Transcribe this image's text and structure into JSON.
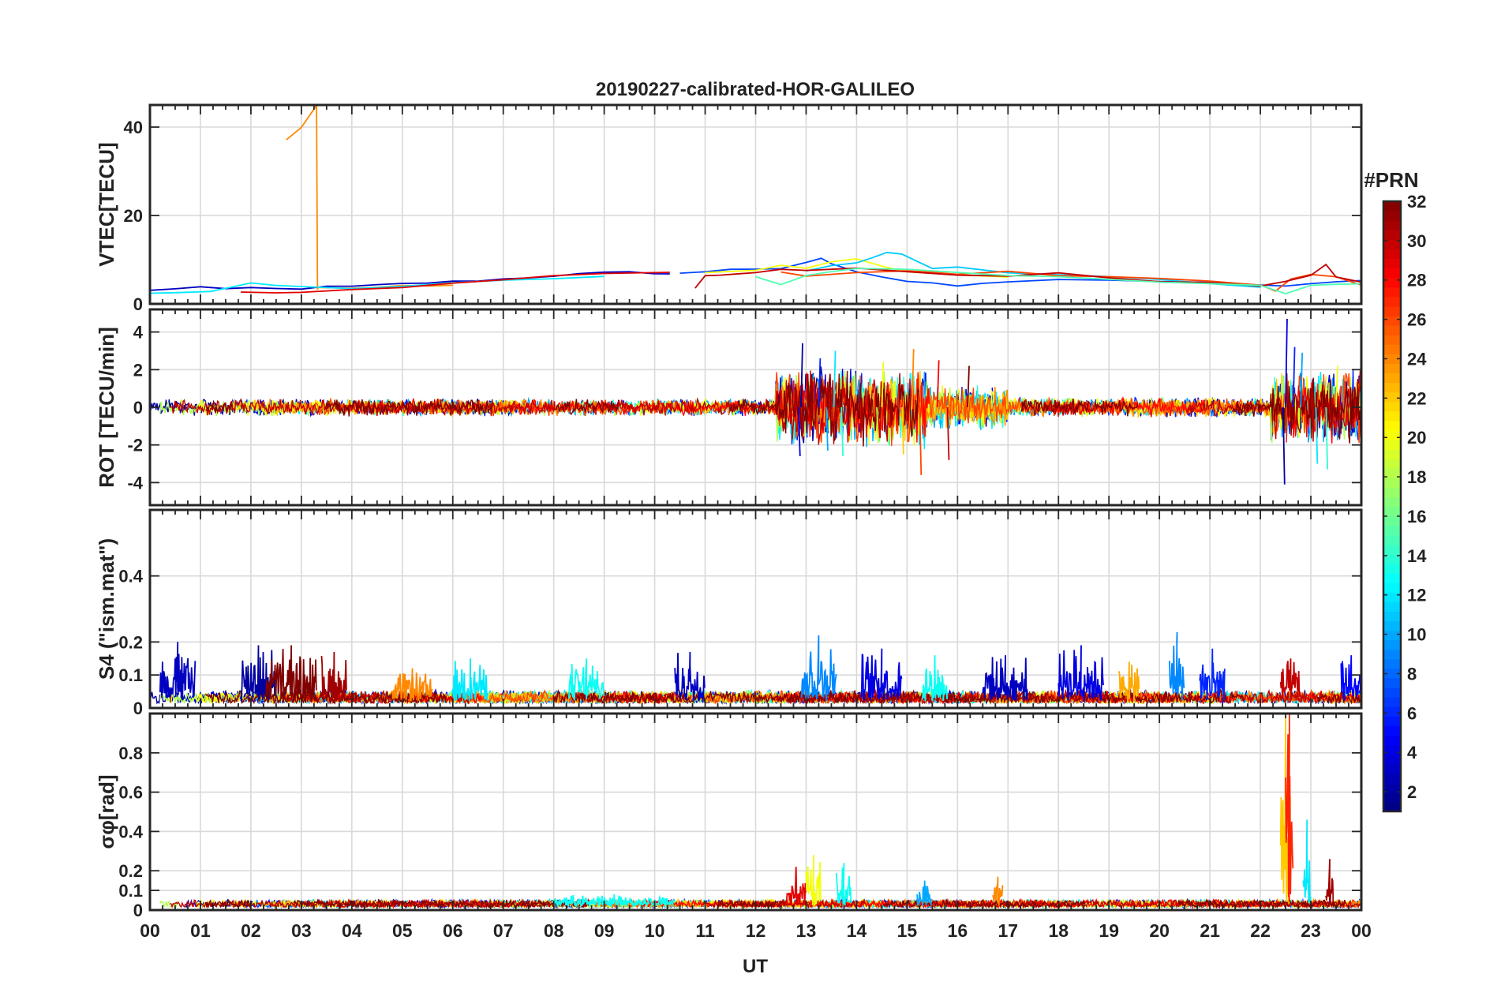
{
  "chart_data": {
    "type": "line",
    "title": "20190227-calibrated-HOR-GALILEO",
    "xlabel": "UT",
    "xlim": [
      0,
      24
    ],
    "x_tick_labels": [
      "00",
      "01",
      "02",
      "03",
      "04",
      "05",
      "06",
      "07",
      "08",
      "09",
      "10",
      "11",
      "12",
      "13",
      "14",
      "15",
      "16",
      "17",
      "18",
      "19",
      "20",
      "21",
      "22",
      "23",
      "00"
    ],
    "grid": true,
    "colorbar": {
      "label": "#PRN",
      "colormap": "jet",
      "range": [
        1,
        32
      ],
      "ticks": [
        "2",
        "4",
        "6",
        "8",
        "10",
        "12",
        "14",
        "16",
        "18",
        "20",
        "22",
        "24",
        "26",
        "28",
        "30",
        "32"
      ]
    },
    "panels": [
      {
        "ylabel": "VTEC[TECU]",
        "ylim": [
          0,
          45
        ],
        "yticks": [
          0,
          20,
          40
        ],
        "series": [
          {
            "prn": 3,
            "x": [
              0,
              0.5,
              1,
              1.5,
              2,
              2.5,
              3,
              3.5,
              4,
              4.5,
              5,
              5.5,
              6,
              6.5,
              7,
              7.5,
              8,
              8.5,
              9,
              9.5,
              10,
              10.3
            ],
            "y": [
              3,
              3.5,
              3.8,
              3.2,
              3.6,
              3.4,
              3.5,
              3.8,
              3.9,
              4.2,
              4.5,
              4.8,
              5,
              5.3,
              5.6,
              6,
              6.4,
              6.7,
              7,
              7.1,
              7,
              6.8
            ]
          },
          {
            "prn": 24,
            "x": [
              2.7,
              3.0,
              3.3,
              3.32,
              3.35,
              3.4,
              4,
              4.5,
              5,
              5.5,
              6
            ],
            "y": [
              37,
              40,
              45,
              3.5,
              3.6,
              3.5,
              3.6,
              3.8,
              4,
              4.2,
              4.4
            ]
          },
          {
            "prn": 12,
            "x": [
              0,
              0.5,
              1.2,
              2,
              2.5,
              3,
              4,
              5,
              6,
              7,
              8,
              9
            ],
            "y": [
              2.5,
              2.6,
              2.8,
              4.5,
              4.2,
              3.8,
              3.6,
              4,
              4.6,
              5.2,
              5.8,
              6.2
            ]
          },
          {
            "prn": 29,
            "x": [
              1.8,
              2.5,
              3,
              4,
              5,
              6,
              7,
              8,
              9,
              10.3
            ],
            "y": [
              2.5,
              2.4,
              2.8,
              3.2,
              3.9,
              4.6,
              5.5,
              6.3,
              7,
              7.2
            ]
          },
          {
            "prn": 7,
            "x": [
              10.5,
              11,
              11.5,
              12,
              12.5,
              13,
              13.3,
              13.5,
              14,
              14.5,
              15,
              15.5,
              16,
              16.5,
              17,
              18,
              19,
              20,
              21,
              22,
              22.5,
              23,
              23.5,
              24
            ],
            "y": [
              7,
              7.3,
              7.6,
              7.9,
              8.2,
              9.5,
              10.5,
              9,
              7.5,
              6.2,
              5.2,
              4.8,
              4.2,
              4.5,
              5,
              5.5,
              5.2,
              5,
              4.8,
              4.5,
              4,
              4.6,
              5,
              5.2
            ]
          },
          {
            "prn": 20,
            "x": [
              11,
              12,
              12.5,
              13,
              13.5,
              14,
              14.5,
              15,
              16,
              17
            ],
            "y": [
              7.2,
              7.6,
              8.5,
              8.2,
              9.5,
              10,
              8.5,
              7.5,
              6.5,
              6
            ]
          },
          {
            "prn": 11,
            "x": [
              13,
              13.5,
              14,
              14.3,
              14.6,
              14.9,
              15.5,
              16,
              17,
              18,
              19,
              20,
              21,
              22
            ],
            "y": [
              7.5,
              8.5,
              9.2,
              10.5,
              11.5,
              11,
              8,
              8.5,
              7,
              6.5,
              6,
              5.5,
              4.5,
              4
            ]
          },
          {
            "prn": 26,
            "x": [
              12.5,
              13,
              14,
              15,
              15.5,
              16,
              17,
              18,
              19,
              20,
              21,
              22,
              22.3,
              22.6,
              23,
              23.5,
              24
            ],
            "y": [
              7,
              6.5,
              7.2,
              7.5,
              7,
              6.8,
              7.2,
              6.5,
              6,
              5.8,
              5.2,
              4.5,
              3,
              5.5,
              6.5,
              6,
              4
            ]
          },
          {
            "prn": 30,
            "x": [
              10.8,
              11,
              11.3,
              11.6,
              12,
              12.5,
              13,
              14,
              15,
              16,
              17,
              18,
              19,
              20,
              21,
              22,
              22.5,
              23,
              23.3,
              23.5,
              24
            ],
            "y": [
              3.5,
              6.2,
              6.6,
              7,
              7.2,
              7.8,
              7.5,
              8,
              7.2,
              6.5,
              6.2,
              6.8,
              5.8,
              5.2,
              4.8,
              4.2,
              5,
              6.5,
              9,
              6,
              5
            ]
          },
          {
            "prn": 15,
            "x": [
              12,
              12.5,
              13,
              13.5,
              14,
              15,
              16,
              17,
              18,
              19,
              20,
              21,
              22,
              22.5,
              23,
              23.5,
              24
            ],
            "y": [
              6.2,
              4.5,
              6.5,
              7.5,
              8,
              7.6,
              7,
              6.4,
              6,
              5.4,
              5,
              4.6,
              4.2,
              2.5,
              4,
              4.5,
              4.8
            ]
          }
        ]
      },
      {
        "ylabel": "ROT [TECU/min]",
        "ylim": [
          -5.2,
          5.2
        ],
        "yticks": [
          -4,
          -2,
          0,
          2,
          4
        ],
        "activity": [
          {
            "x": [
              0,
              12.4
            ],
            "amp": 0.35
          },
          {
            "x": [
              12.4,
              15.4
            ],
            "amp": 1.6
          },
          {
            "x": [
              15.4,
              17
            ],
            "amp": 0.9
          },
          {
            "x": [
              17,
              22.2
            ],
            "amp": 0.4
          },
          {
            "x": [
              22.2,
              24
            ],
            "amp": 1.5
          }
        ],
        "spikes": [
          {
            "x": 12.9,
            "y": 3.4
          },
          {
            "x": 12.85,
            "y": -2.6
          },
          {
            "x": 13.25,
            "y": 2.6
          },
          {
            "x": 13.4,
            "y": -2.3
          },
          {
            "x": 13.55,
            "y": 3.0
          },
          {
            "x": 13.7,
            "y": -2.6
          },
          {
            "x": 14.4,
            "y": -1.9
          },
          {
            "x": 14.5,
            "y": 2.4
          },
          {
            "x": 14.9,
            "y": -2.5
          },
          {
            "x": 15.1,
            "y": 3.1
          },
          {
            "x": 15.25,
            "y": -3.6
          },
          {
            "x": 15.6,
            "y": 2.5
          },
          {
            "x": 15.8,
            "y": -2.8
          },
          {
            "x": 16.2,
            "y": 2.2
          },
          {
            "x": 22.45,
            "y": -4.1
          },
          {
            "x": 22.5,
            "y": 4.7
          },
          {
            "x": 22.65,
            "y": 3.2
          },
          {
            "x": 22.8,
            "y": 2.9
          },
          {
            "x": 23.1,
            "y": -3.0
          },
          {
            "x": 23.3,
            "y": -3.3
          },
          {
            "x": 22.2,
            "y": -1.9
          },
          {
            "x": 23.5,
            "y": 2.2
          }
        ]
      },
      {
        "ylabel": "S4 (\"ism.mat\")",
        "ylim": [
          0,
          0.6
        ],
        "yticks": [
          0,
          0.1,
          0.2,
          0.4
        ],
        "activity": [
          {
            "x": [
              0,
              24
            ],
            "amp": 0.04
          }
        ],
        "bursts": [
          {
            "x": [
              0.2,
              0.9
            ],
            "peak": 0.2,
            "prn": 3
          },
          {
            "x": [
              1.8,
              2.5
            ],
            "peak": 0.19,
            "prn": 2
          },
          {
            "x": [
              2.3,
              3.3
            ],
            "peak": 0.19,
            "prn": 32
          },
          {
            "x": [
              3.4,
              3.9
            ],
            "peak": 0.17,
            "prn": 31
          },
          {
            "x": [
              4.8,
              5.6
            ],
            "peak": 0.12,
            "prn": 24
          },
          {
            "x": [
              6.0,
              6.7
            ],
            "peak": 0.15,
            "prn": 12
          },
          {
            "x": [
              8.3,
              9.0
            ],
            "peak": 0.15,
            "prn": 13
          },
          {
            "x": [
              10.4,
              11.0
            ],
            "peak": 0.17,
            "prn": 3
          },
          {
            "x": [
              12.9,
              13.6
            ],
            "peak": 0.22,
            "prn": 9
          },
          {
            "x": [
              14.1,
              14.9
            ],
            "peak": 0.18,
            "prn": 4
          },
          {
            "x": [
              15.3,
              15.8
            ],
            "peak": 0.16,
            "prn": 13
          },
          {
            "x": [
              16.5,
              17.4
            ],
            "peak": 0.16,
            "prn": 3
          },
          {
            "x": [
              18.0,
              18.9
            ],
            "peak": 0.19,
            "prn": 4
          },
          {
            "x": [
              19.2,
              19.6
            ],
            "peak": 0.14,
            "prn": 23
          },
          {
            "x": [
              20.2,
              20.5
            ],
            "peak": 0.23,
            "prn": 9
          },
          {
            "x": [
              20.8,
              21.3
            ],
            "peak": 0.18,
            "prn": 6
          },
          {
            "x": [
              22.4,
              22.8
            ],
            "peak": 0.15,
            "prn": 30
          },
          {
            "x": [
              23.6,
              24.0
            ],
            "peak": 0.16,
            "prn": 5
          }
        ]
      },
      {
        "ylabel": "σφ[rad]",
        "ylim": [
          0,
          1.0
        ],
        "yticks": [
          0,
          0.1,
          0.2,
          0.4,
          0.6,
          0.8
        ],
        "activity": [
          {
            "x": [
              0,
              24
            ],
            "amp": 0.04
          }
        ],
        "bursts": [
          {
            "x": [
              8.0,
              10.4
            ],
            "peak": 0.08,
            "prn": 13
          },
          {
            "x": [
              12.6,
              13.0
            ],
            "peak": 0.22,
            "prn": 29
          },
          {
            "x": [
              13.0,
              13.3
            ],
            "peak": 0.28,
            "prn": 20
          },
          {
            "x": [
              13.6,
              13.9
            ],
            "peak": 0.24,
            "prn": 13
          },
          {
            "x": [
              15.2,
              15.5
            ],
            "peak": 0.15,
            "prn": 10
          },
          {
            "x": [
              16.7,
              16.9
            ],
            "peak": 0.17,
            "prn": 24
          },
          {
            "x": [
              22.4,
              22.6
            ],
            "peak": 1.0,
            "prn": 22
          },
          {
            "x": [
              22.5,
              22.65
            ],
            "peak": 1.0,
            "prn": 27
          },
          {
            "x": [
              22.85,
              23.0
            ],
            "peak": 0.46,
            "prn": 12
          },
          {
            "x": [
              23.3,
              23.45
            ],
            "peak": 0.26,
            "prn": 31
          }
        ]
      }
    ]
  }
}
